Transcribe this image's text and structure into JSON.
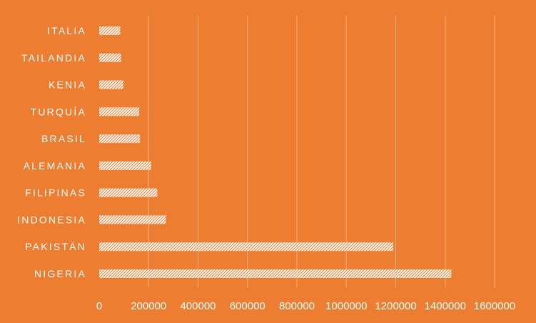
{
  "colors": {
    "background": "#ED7D31",
    "bar_fill": "#FFFFFF",
    "bar_hatch": "#ED7D31",
    "gridline": "#F5B184",
    "text": "#FFFFFF"
  },
  "chart_data": {
    "type": "bar",
    "orientation": "horizontal",
    "title": "",
    "xlabel": "",
    "ylabel": "",
    "categories": [
      "ITALIA",
      "TAILANDIA",
      "KENIA",
      "TURQUÍA",
      "BRASIL",
      "ALEMANIA",
      "FILIPINAS",
      "INDONESIA",
      "PAKISTÁN",
      "NIGERIA"
    ],
    "values": [
      85000,
      88000,
      98000,
      162000,
      165000,
      210000,
      235000,
      270000,
      1190000,
      1425000
    ],
    "xlim": [
      0,
      1600000
    ],
    "xticks": [
      "0",
      "200000",
      "400000",
      "600000",
      "800000",
      "1000000",
      "1200000",
      "1400000",
      "1600000"
    ],
    "xtick_values": [
      0,
      200000,
      400000,
      600000,
      800000,
      1000000,
      1200000,
      1400000,
      1600000
    ],
    "grid": true,
    "legend": "none",
    "bar_pattern": "diagonal-hatch"
  }
}
